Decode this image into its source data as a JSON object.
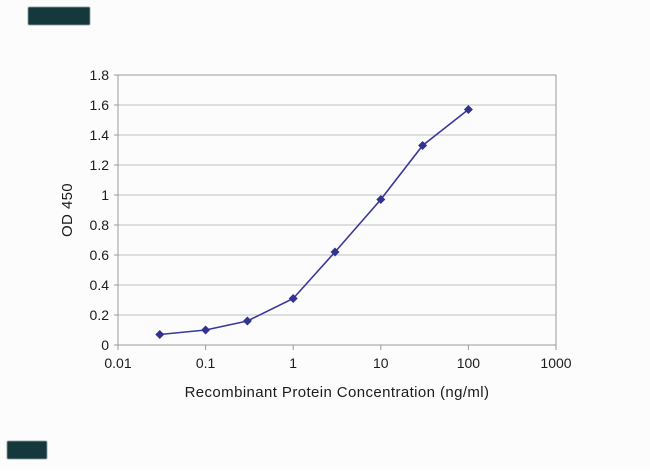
{
  "page": {
    "background": "#fcfcfc"
  },
  "decorations": {
    "top_left_bar_color": "#14383c",
    "bottom_left_bar_color": "#14383c"
  },
  "chart_data": {
    "type": "line",
    "title": "",
    "xlabel": "Recombinant Protein Concentration (ng/ml)",
    "ylabel": "OD 450",
    "x": [
      0.03,
      0.1,
      0.3,
      1,
      3,
      10,
      30,
      100
    ],
    "values": [
      0.07,
      0.1,
      0.16,
      0.31,
      0.62,
      0.97,
      1.33,
      1.57
    ],
    "xscale": "log",
    "xlim": [
      0.01,
      1000
    ],
    "ylim": [
      0,
      1.8
    ],
    "xticks": [
      0.01,
      0.1,
      1,
      10,
      100,
      1000
    ],
    "yticks": [
      0,
      0.2,
      0.4,
      0.6,
      0.8,
      1,
      1.2,
      1.4,
      1.6,
      1.8
    ],
    "grid": "horizontal",
    "legend": "none",
    "marker": "diamond",
    "colors": {
      "line": "#39399b",
      "marker": "#32328f",
      "grid": "#bfbfbf",
      "axis": "#9a9a9a",
      "text": "#1c1c1c"
    }
  }
}
